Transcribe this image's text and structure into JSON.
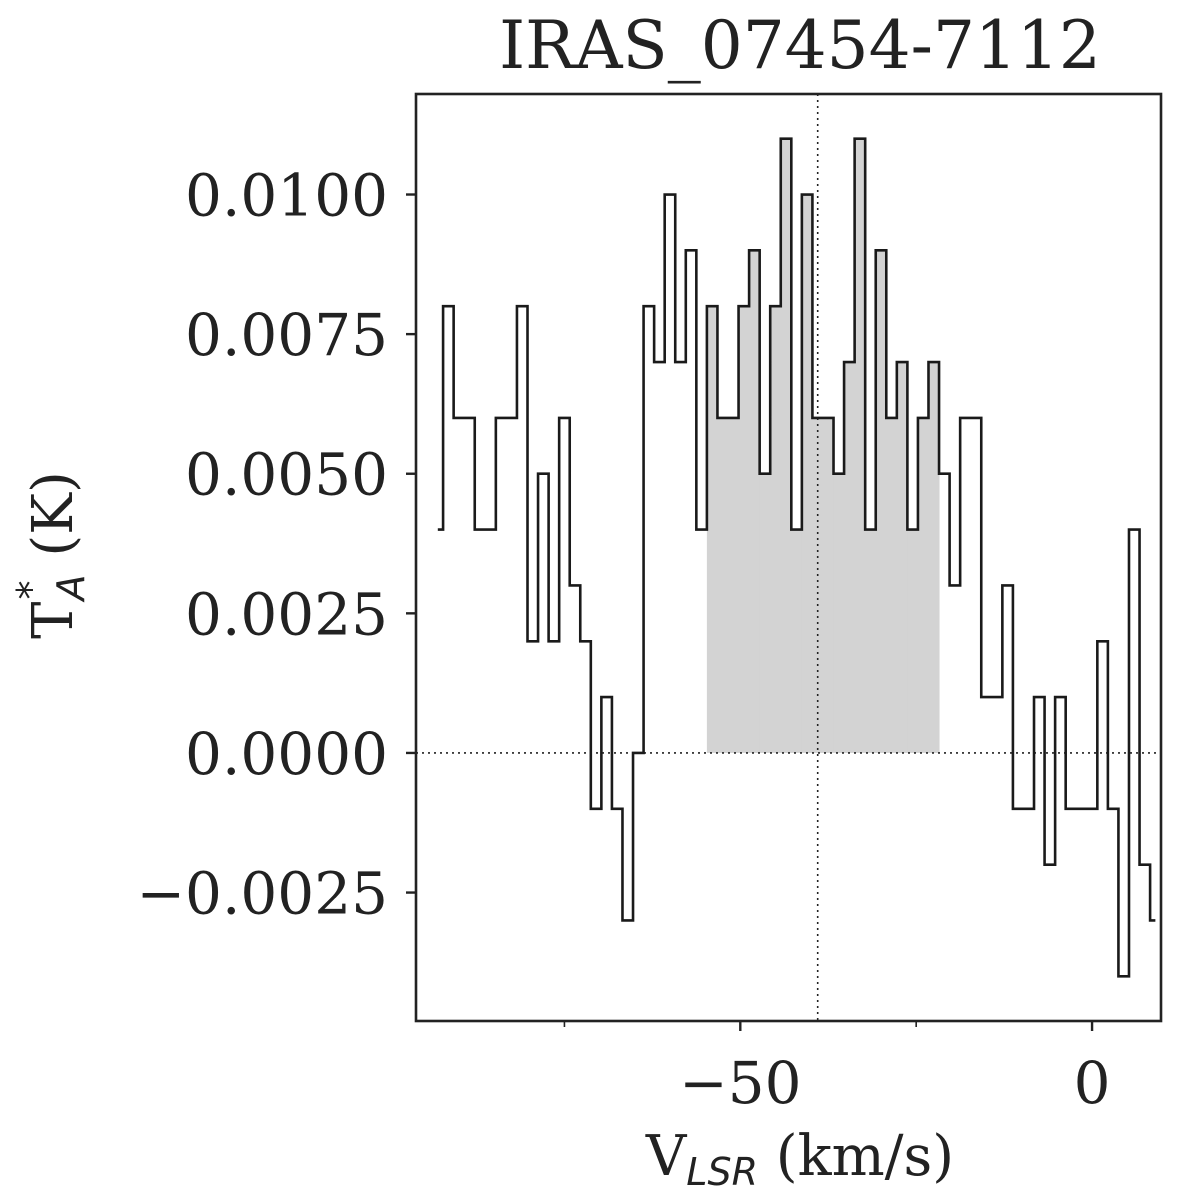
{
  "chart_data": {
    "type": "line",
    "drawstyle": "steps-mid",
    "title": "IRAS_07454-7112",
    "xlabel": {
      "main": "V",
      "subscript": "LSR",
      "unit": " (km/s)"
    },
    "ylabel": {
      "main": "T",
      "superscript": "*",
      "subscript": "A",
      "unit": " (K)"
    },
    "xlim": [
      -96.1,
      9.8
    ],
    "ylim": [
      -0.0048,
      0.0118
    ],
    "xticks": [
      -50,
      0
    ],
    "xtick_labels": [
      "−50",
      "0"
    ],
    "xticks_minor": [
      -75,
      -25
    ],
    "yticks": [
      -0.0025,
      0.0,
      0.0025,
      0.005,
      0.0075,
      0.01
    ],
    "ytick_labels": [
      "−0.0025",
      "0.0000",
      "0.0025",
      "0.0050",
      "0.0075",
      "0.0100"
    ],
    "vline_x": -39.0,
    "hline_y": 0.0,
    "shade_range": [
      -54.5,
      -22.5
    ],
    "shade_color": "#d3d3d3",
    "line_color": "#1a1a1a",
    "grid": false,
    "x": [
      -93.0,
      -91.5,
      -90.0,
      -88.5,
      -87.0,
      -85.5,
      -84.0,
      -82.5,
      -81.0,
      -79.5,
      -78.0,
      -76.5,
      -75.0,
      -73.5,
      -72.0,
      -70.5,
      -69.0,
      -67.5,
      -66.0,
      -64.5,
      -63.0,
      -61.5,
      -60.0,
      -58.5,
      -57.0,
      -55.5,
      -54.0,
      -52.5,
      -51.0,
      -49.5,
      -48.0,
      -46.5,
      -45.0,
      -43.5,
      -42.0,
      -40.5,
      -39.0,
      -37.5,
      -36.0,
      -34.5,
      -33.0,
      -31.5,
      -30.0,
      -28.5,
      -27.0,
      -25.5,
      -24.0,
      -22.5,
      -21.0,
      -19.5,
      -18.0,
      -16.5,
      -15.0,
      -13.5,
      -12.0,
      -10.5,
      -9.0,
      -7.5,
      -6.0,
      -4.5,
      -3.0,
      -1.5,
      0.0,
      1.5,
      3.0,
      4.5,
      6.0,
      7.5,
      9.0
    ],
    "y": [
      0.004,
      0.008,
      0.006,
      0.006,
      0.004,
      0.004,
      0.006,
      0.006,
      0.008,
      0.002,
      0.005,
      0.002,
      0.006,
      0.003,
      0.002,
      -0.001,
      0.001,
      -0.001,
      -0.003,
      0.0,
      0.008,
      0.007,
      0.01,
      0.007,
      0.009,
      0.004,
      0.008,
      0.006,
      0.006,
      0.008,
      0.009,
      0.005,
      0.008,
      0.011,
      0.004,
      0.01,
      0.006,
      0.006,
      0.005,
      0.007,
      0.011,
      0.004,
      0.009,
      0.006,
      0.007,
      0.004,
      0.006,
      0.007,
      0.005,
      0.003,
      0.006,
      0.006,
      0.001,
      0.001,
      0.003,
      -0.001,
      -0.001,
      0.001,
      -0.002,
      0.001,
      -0.001,
      -0.001,
      -0.001,
      0.002,
      -0.001,
      -0.004,
      0.004,
      -0.002,
      -0.003
    ]
  }
}
